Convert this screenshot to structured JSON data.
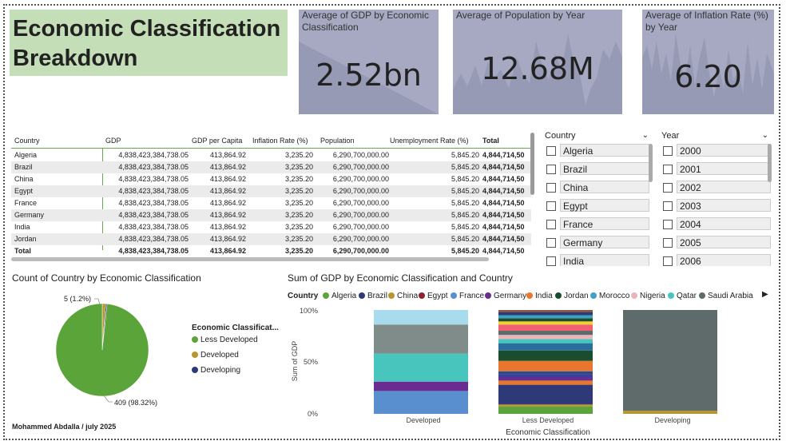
{
  "title": "Economic Classification Breakdown",
  "cards": [
    {
      "label": "Average of GDP by Economic Classification",
      "value": "2.52bn"
    },
    {
      "label": "Average of Population by Year",
      "value": "12.68M"
    },
    {
      "label": "Average of Inflation Rate (%) by Year",
      "value": "6.20"
    }
  ],
  "table": {
    "headers": [
      "Country",
      "GDP",
      "GDP per Capita",
      "Inflation Rate (%)",
      "Population",
      "Unemployment Rate (%)",
      "Total"
    ],
    "rows": [
      [
        "Algeria",
        "4,838,423,384,738.05",
        "413,864.92",
        "3,235.20",
        "6,290,700,000.00",
        "5,845.20",
        "4,844,714,50"
      ],
      [
        "Brazil",
        "4,838,423,384,738.05",
        "413,864.92",
        "3,235.20",
        "6,290,700,000.00",
        "5,845.20",
        "4,844,714,50"
      ],
      [
        "China",
        "4,838,423,384,738.05",
        "413,864.92",
        "3,235.20",
        "6,290,700,000.00",
        "5,845.20",
        "4,844,714,50"
      ],
      [
        "Egypt",
        "4,838,423,384,738.05",
        "413,864.92",
        "3,235.20",
        "6,290,700,000.00",
        "5,845.20",
        "4,844,714,50"
      ],
      [
        "France",
        "4,838,423,384,738.05",
        "413,864.92",
        "3,235.20",
        "6,290,700,000.00",
        "5,845.20",
        "4,844,714,50"
      ],
      [
        "Germany",
        "4,838,423,384,738.05",
        "413,864.92",
        "3,235.20",
        "6,290,700,000.00",
        "5,845.20",
        "4,844,714,50"
      ],
      [
        "India",
        "4,838,423,384,738.05",
        "413,864.92",
        "3,235.20",
        "6,290,700,000.00",
        "5,845.20",
        "4,844,714,50"
      ],
      [
        "Jordan",
        "4,838,423,384,738.05",
        "413,864.92",
        "3,235.20",
        "6,290,700,000.00",
        "5,845.20",
        "4,844,714,50"
      ]
    ],
    "total": [
      "Total",
      "4,838,423,384,738.05",
      "413,864.92",
      "3,235.20",
      "6,290,700,000.00",
      "5,845.20",
      "4,844,714,50"
    ]
  },
  "slicers": {
    "country": {
      "title": "Country",
      "items": [
        "Algeria",
        "Brazil",
        "China",
        "Egypt",
        "France",
        "Germany",
        "India"
      ]
    },
    "year": {
      "title": "Year",
      "items": [
        "2000",
        "2001",
        "2002",
        "2003",
        "2004",
        "2005",
        "2006"
      ]
    },
    "chevron_icon": "chevron-down-icon"
  },
  "pie": {
    "title": "Count of Country by Economic Classification",
    "legend_title": "Economic Classificat...",
    "legend": [
      {
        "name": "Less Developed",
        "color": "#5aa43a"
      },
      {
        "name": "Developed",
        "color": "#b8962e"
      },
      {
        "name": "Developing",
        "color": "#2e3a78"
      }
    ],
    "label_small": "5 (1.2%)",
    "label_big": "409 (98.32%)"
  },
  "bar": {
    "title": "Sum of GDP by Economic Classification and Country",
    "legend_title": "Country",
    "legend": [
      {
        "name": "Algeria",
        "color": "#5aa43a"
      },
      {
        "name": "Brazil",
        "color": "#2e3a78"
      },
      {
        "name": "China",
        "color": "#b8962e"
      },
      {
        "name": "Egypt",
        "color": "#8b2232"
      },
      {
        "name": "France",
        "color": "#5a8fcf"
      },
      {
        "name": "Germany",
        "color": "#6a2c91"
      },
      {
        "name": "India",
        "color": "#e8772e"
      },
      {
        "name": "Jordan",
        "color": "#1a4d2e"
      },
      {
        "name": "Morocco",
        "color": "#3fa1c4"
      },
      {
        "name": "Nigeria",
        "color": "#e8b5b8"
      },
      {
        "name": "Qatar",
        "color": "#48c6bd"
      },
      {
        "name": "Saudi Arabia",
        "color": "#5f6a6a"
      }
    ],
    "ylabel": "Sum of GDP",
    "xlabel": "Economic Classification",
    "yticks": [
      "100%",
      "50%",
      "0%"
    ]
  },
  "chart_data": [
    {
      "type": "pie",
      "title": "Count of Country by Economic Classification",
      "categories": [
        "Less Developed",
        "Developed",
        "Developing"
      ],
      "values": [
        409,
        5,
        2
      ],
      "colors": [
        "#5aa43a",
        "#b8962e",
        "#2e3a78"
      ]
    },
    {
      "type": "bar",
      "stacked": "100%",
      "title": "Sum of GDP by Economic Classification and Country",
      "xlabel": "Economic Classification",
      "ylabel": "Sum of GDP",
      "categories": [
        "Developed",
        "Less Developed",
        "Developing"
      ],
      "ylim": [
        0,
        100
      ],
      "stacks": [
        [
          {
            "color": "#5a8fcf",
            "value": 22
          },
          {
            "color": "#6a2c91",
            "value": 9
          },
          {
            "color": "#48c6bd",
            "value": 27
          },
          {
            "color": "#7f8c8a",
            "value": 28
          },
          {
            "color": "#a8dcec",
            "value": 14
          }
        ],
        [
          {
            "color": "#5aa43a",
            "value": 7
          },
          {
            "color": "#b8962e",
            "value": 2
          },
          {
            "color": "#2e3a78",
            "value": 19
          },
          {
            "color": "#e8772e",
            "value": 4
          },
          {
            "color": "#6a2c91",
            "value": 3
          },
          {
            "color": "#3a3f9a",
            "value": 3
          },
          {
            "color": "#2e4a8a",
            "value": 3
          },
          {
            "color": "#e8772e",
            "value": 10
          },
          {
            "color": "#1a4d2e",
            "value": 10
          },
          {
            "color": "#2a6e9e",
            "value": 7
          },
          {
            "color": "#48c6bd",
            "value": 4
          },
          {
            "color": "#e8b5b8",
            "value": 4
          },
          {
            "color": "#5f6a6a",
            "value": 4
          },
          {
            "color": "#f06070",
            "value": 6
          },
          {
            "color": "#f2d02e",
            "value": 3
          },
          {
            "color": "#1a4d2e",
            "value": 3
          },
          {
            "color": "#3fa1c4",
            "value": 3
          },
          {
            "color": "#2e3a78",
            "value": 3
          },
          {
            "color": "#8b5a3c",
            "value": 2
          }
        ],
        [
          {
            "color": "#b8962e",
            "value": 3
          },
          {
            "color": "#5f6a6a",
            "value": 97
          }
        ]
      ]
    }
  ]
}
